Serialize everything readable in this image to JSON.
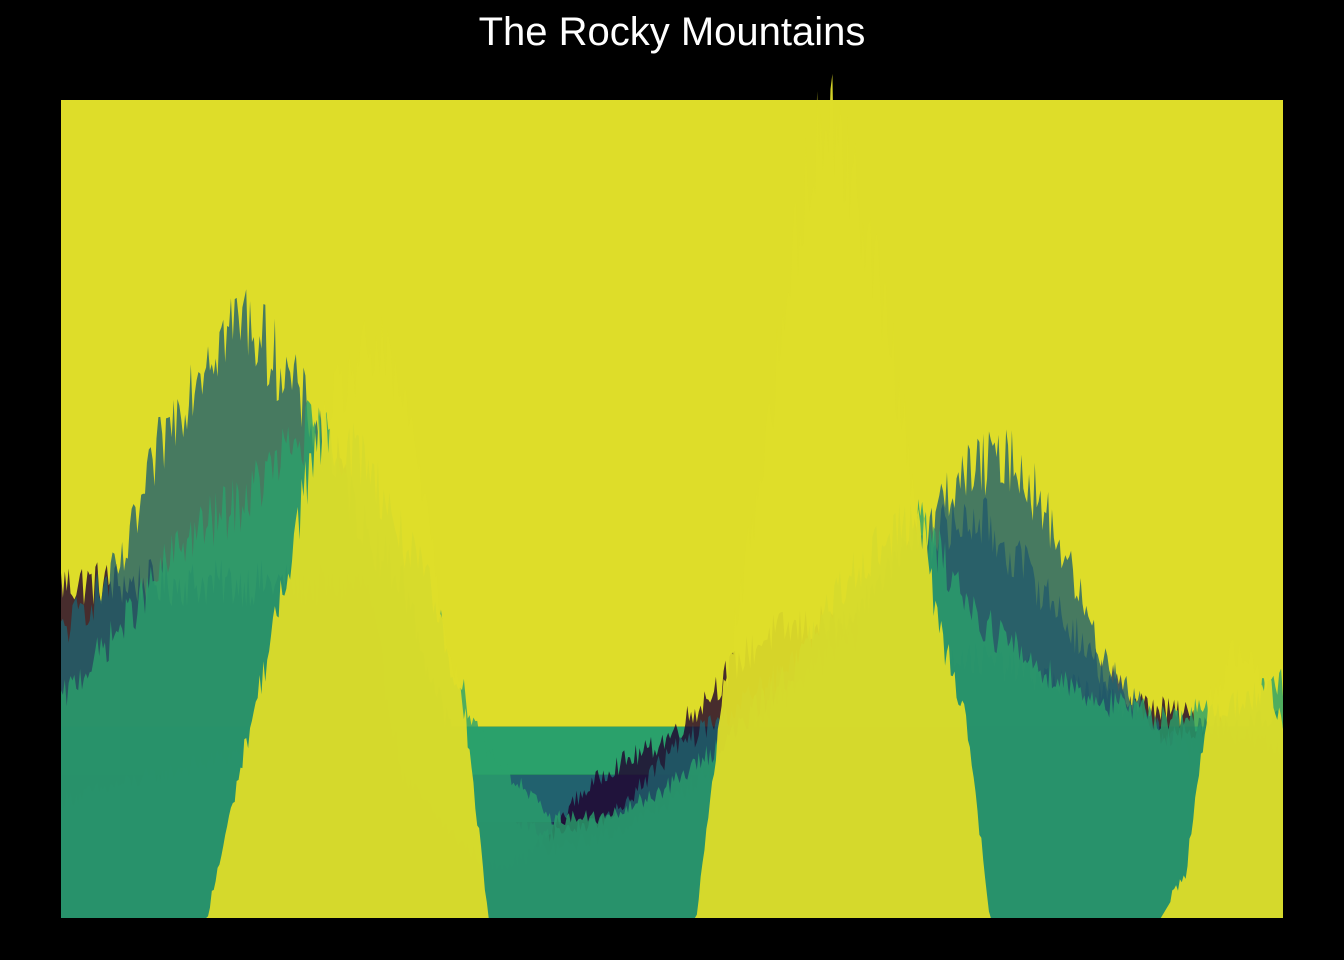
{
  "chart_data": {
    "type": "area",
    "title": "The Rocky Mountains",
    "xlabel": "",
    "ylabel": "",
    "xlim": [
      0,
      1
    ],
    "ylim": [
      0,
      1
    ],
    "grid": false,
    "legend": "none",
    "background": "#000000",
    "note_colors": "viridis palette",
    "bands": [
      {
        "color": "#20002e",
        "y0": 0.0,
        "y1": 0.058
      },
      {
        "color": "#253c63",
        "y0": 0.058,
        "y1": 0.117
      },
      {
        "color": "#21616e",
        "y0": 0.117,
        "y1": 0.175
      },
      {
        "color": "#2aa16b",
        "y0": 0.175,
        "y1": 0.234
      },
      {
        "color": "#dedd29",
        "y0": 0.234,
        "y1": 1.0
      }
    ],
    "series": [
      {
        "color": "#20002e",
        "x": [
          0.0,
          0.25,
          0.28,
          0.32,
          0.35,
          0.38,
          0.4,
          0.42,
          0.45,
          0.48,
          0.5,
          0.52,
          0.55,
          0.58,
          0.62,
          0.65,
          0.68,
          0.72,
          0.75,
          0.78,
          0.82,
          0.86,
          0.9,
          0.95,
          1.0
        ],
        "y": [
          0.4,
          0.4,
          0.17,
          0.1,
          0.06,
          0.07,
          0.1,
          0.14,
          0.18,
          0.2,
          0.22,
          0.25,
          0.3,
          0.34,
          0.35,
          0.34,
          0.33,
          0.32,
          0.31,
          0.3,
          0.28,
          0.26,
          0.25,
          0.23,
          0.2
        ]
      },
      {
        "color": "#253c63",
        "x": [
          0.0,
          0.05,
          0.1,
          0.15,
          0.2,
          0.25,
          0.3,
          0.35,
          0.4,
          0.45,
          0.5,
          0.55,
          0.6,
          0.65,
          0.7,
          0.75,
          0.8,
          0.85,
          0.9,
          0.95,
          1.0
        ],
        "y": [
          0.14,
          0.16,
          0.18,
          0.2,
          0.21,
          0.2,
          0.15,
          0.1,
          0.08,
          0.1,
          0.14,
          0.2,
          0.28,
          0.34,
          0.45,
          0.48,
          0.4,
          0.3,
          0.22,
          0.18,
          0.15
        ]
      },
      {
        "color": "#21616e",
        "x": [
          0.0,
          0.05,
          0.08,
          0.12,
          0.15,
          0.18,
          0.22,
          0.25,
          0.28,
          0.3,
          0.32,
          0.35,
          0.4,
          0.45,
          0.5,
          0.55,
          0.6,
          0.65,
          0.7,
          0.73,
          0.75,
          0.78,
          0.8,
          0.82,
          0.85,
          0.88,
          0.9,
          0.95,
          1.0
        ],
        "y": [
          0.34,
          0.42,
          0.56,
          0.68,
          0.72,
          0.66,
          0.56,
          0.46,
          0.4,
          0.3,
          0.22,
          0.13,
          0.1,
          0.12,
          0.2,
          0.25,
          0.3,
          0.36,
          0.44,
          0.52,
          0.54,
          0.55,
          0.5,
          0.44,
          0.32,
          0.26,
          0.22,
          0.22,
          0.24
        ]
      },
      {
        "color": "#2aa16b",
        "x": [
          0.0,
          0.05,
          0.1,
          0.15,
          0.2,
          0.25,
          0.28,
          0.3,
          0.32,
          0.35,
          0.4,
          0.45,
          0.5,
          0.55,
          0.6,
          0.65,
          0.7,
          0.75,
          0.8,
          0.85,
          0.9,
          0.95,
          1.0
        ],
        "y": [
          0.26,
          0.35,
          0.45,
          0.5,
          0.58,
          0.55,
          0.45,
          0.4,
          0.3,
          0.2,
          0.12,
          0.12,
          0.16,
          0.22,
          0.3,
          0.42,
          0.48,
          0.36,
          0.3,
          0.26,
          0.24,
          0.25,
          0.28
        ]
      },
      {
        "color": "#dedd29",
        "x": [
          0.0,
          0.08,
          0.12,
          0.15,
          0.18,
          0.2,
          0.22,
          0.24,
          0.26,
          0.28,
          0.3,
          0.31,
          0.33,
          0.35,
          0.4,
          0.45,
          0.48,
          0.5,
          0.52,
          0.54,
          0.56,
          0.58,
          0.6,
          0.61,
          0.62,
          0.63,
          0.64,
          0.66,
          0.68,
          0.7,
          0.72,
          0.74,
          0.76,
          0.78,
          0.8,
          0.85,
          0.88,
          0.9,
          0.92,
          0.94,
          0.96,
          0.98,
          1.0
        ],
        "y": [
          0.0,
          0.0,
          0.0,
          0.2,
          0.38,
          0.52,
          0.6,
          0.66,
          0.68,
          0.62,
          0.5,
          0.38,
          0.25,
          0.0,
          0.0,
          0.0,
          0.0,
          0.0,
          0.0,
          0.25,
          0.42,
          0.6,
          0.8,
          0.88,
          0.94,
          0.96,
          0.92,
          0.82,
          0.68,
          0.5,
          0.34,
          0.25,
          0.0,
          0.0,
          0.0,
          0.0,
          0.0,
          0.0,
          0.05,
          0.26,
          0.32,
          0.3,
          0.24
        ]
      }
    ]
  }
}
